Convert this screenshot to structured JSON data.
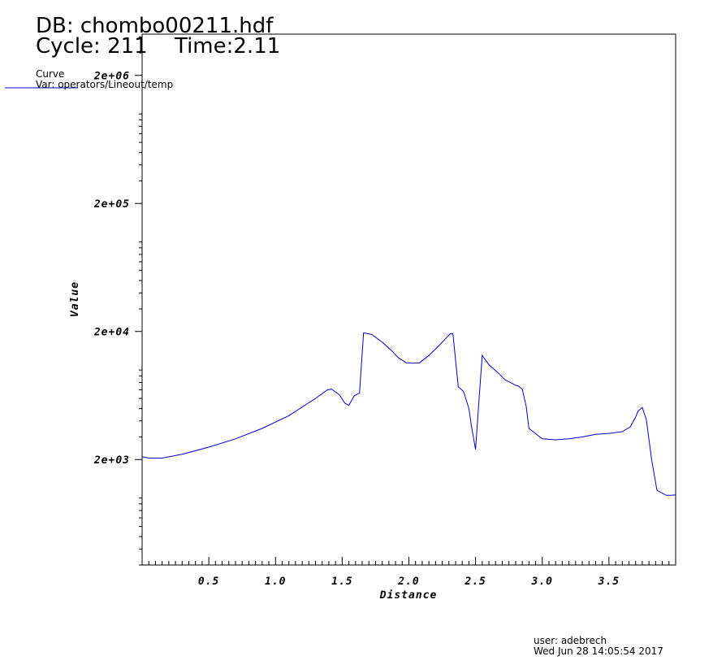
{
  "header": {
    "db": "DB: chombo00211.hdf",
    "cycle": "Cycle: 211",
    "time": "Time:2.11"
  },
  "legend": {
    "title": "Curve",
    "var": "Var: operators/Lineout/temp",
    "line_color": "#0000cc"
  },
  "footer": {
    "user": "user: adebrech",
    "date": "Wed Jun 28 14:05:54 2017"
  },
  "chart_data": {
    "type": "line",
    "xlabel": "Distance",
    "ylabel": "Value",
    "y_scale": "log",
    "xlim": [
      0.0,
      4.0
    ],
    "ylim": [
      300,
      4200000
    ],
    "x_ticks": [
      0.5,
      1.0,
      1.5,
      2.0,
      2.5,
      3.0,
      3.5
    ],
    "x_tick_labels": [
      "0.5",
      "1.0",
      "1.5",
      "2.0",
      "2.5",
      "3.0",
      "3.5"
    ],
    "y_ticks": [
      2000,
      20000,
      200000,
      2000000
    ],
    "y_tick_labels": [
      "2e+03",
      "2e+04",
      "2e+05",
      "2e+06"
    ],
    "grid": false,
    "series": [
      {
        "color": "#0000cc",
        "x": [
          0.0,
          0.05,
          0.15,
          0.3,
          0.5,
          0.7,
          0.9,
          1.1,
          1.3,
          1.39,
          1.42,
          1.48,
          1.52,
          1.55,
          1.59,
          1.63,
          1.66,
          1.72,
          1.8,
          1.87,
          1.92,
          1.98,
          2.03,
          2.08,
          2.15,
          2.22,
          2.28,
          2.31,
          2.33,
          2.37,
          2.41,
          2.45,
          2.47,
          2.5,
          2.52,
          2.55,
          2.6,
          2.67,
          2.72,
          2.78,
          2.8,
          2.82,
          2.85,
          2.88,
          2.9,
          3.0,
          3.1,
          3.2,
          3.3,
          3.4,
          3.5,
          3.6,
          3.66,
          3.7,
          3.72,
          3.75,
          3.78,
          3.82,
          3.86,
          3.93,
          3.97,
          4.0
        ],
        "y": [
          2100,
          2050,
          2050,
          2200,
          2500,
          2900,
          3500,
          4400,
          6000,
          7000,
          7100,
          6400,
          5500,
          5300,
          6300,
          6600,
          19500,
          19000,
          16500,
          14200,
          12500,
          11400,
          11300,
          11400,
          13000,
          15300,
          17800,
          19200,
          19300,
          7400,
          6800,
          5000,
          3600,
          2400,
          4800,
          13000,
          11000,
          9500,
          8400,
          7800,
          7600,
          7500,
          7100,
          5200,
          3500,
          2900,
          2850,
          2900,
          3000,
          3150,
          3200,
          3300,
          3600,
          4300,
          4800,
          5100,
          4100,
          2000,
          1150,
          1050,
          1050,
          1060
        ]
      }
    ]
  }
}
